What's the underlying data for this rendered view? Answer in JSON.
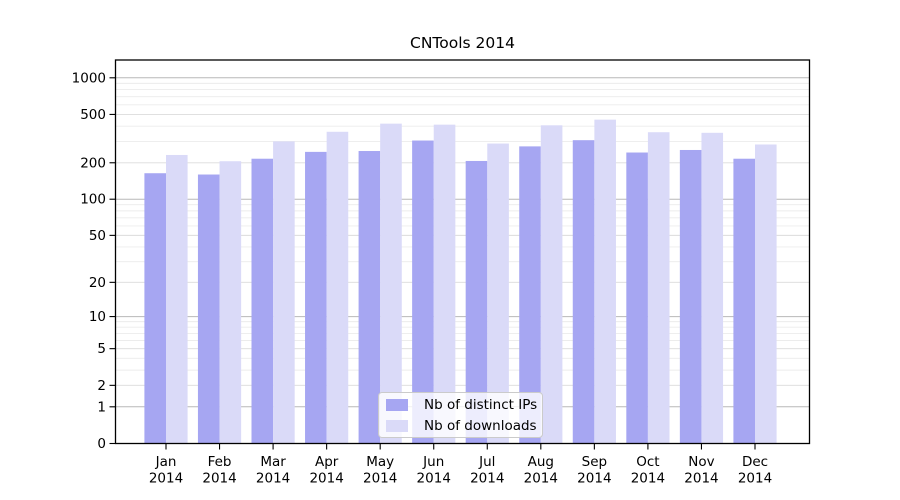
{
  "chart_data": {
    "type": "bar",
    "title": "CNTools 2014",
    "y_scale": "log1p",
    "ylim": [
      0,
      1400
    ],
    "y_ticks": [
      0,
      1,
      2,
      5,
      10,
      20,
      50,
      100,
      200,
      500,
      1000
    ],
    "grid": true,
    "legend_position": "lower center",
    "x_ticks": [
      {
        "line1": "Jan",
        "line2": "2014"
      },
      {
        "line1": "Feb",
        "line2": "2014"
      },
      {
        "line1": "Mar",
        "line2": "2014"
      },
      {
        "line1": "Apr",
        "line2": "2014"
      },
      {
        "line1": "May",
        "line2": "2014"
      },
      {
        "line1": "Jun",
        "line2": "2014"
      },
      {
        "line1": "Jul",
        "line2": "2014"
      },
      {
        "line1": "Aug",
        "line2": "2014"
      },
      {
        "line1": "Sep",
        "line2": "2014"
      },
      {
        "line1": "Oct",
        "line2": "2014"
      },
      {
        "line1": "Nov",
        "line2": "2014"
      },
      {
        "line1": "Dec",
        "line2": "2014"
      }
    ],
    "series": [
      {
        "name": "Nb of distinct IPs",
        "color": "#a6a6f2",
        "values": [
          164,
          160,
          216,
          246,
          250,
          305,
          207,
          273,
          307,
          243,
          255,
          216
        ]
      },
      {
        "name": "Nb of downloads",
        "color": "#dadaf8",
        "values": [
          232,
          206,
          300,
          360,
          420,
          412,
          288,
          407,
          453,
          357,
          353,
          283
        ]
      }
    ],
    "colors": {
      "major_grid": "#b8b8b8",
      "labeled_minor_grid": "#dcdcdc",
      "minor_grid": "#ececec",
      "axis": "#000000"
    }
  }
}
